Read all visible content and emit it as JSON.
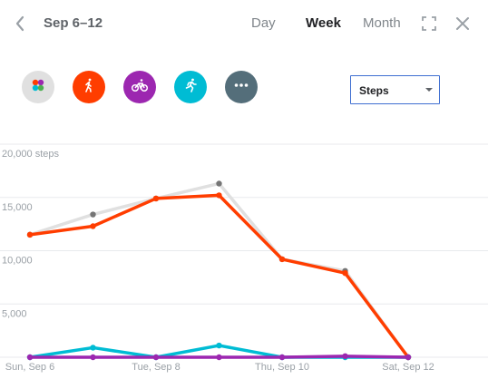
{
  "header": {
    "title": "Sep 6–12",
    "tabs": [
      {
        "label": "Day",
        "active": false
      },
      {
        "label": "Week",
        "active": true
      },
      {
        "label": "Month",
        "active": false
      }
    ],
    "icons": [
      "back-chevron-icon",
      "fullscreen-icon",
      "close-icon"
    ]
  },
  "filters": [
    {
      "name": "all-activities",
      "icon": "multicolor-dots-icon",
      "color": "#e0e0e0"
    },
    {
      "name": "walking",
      "icon": "walking-icon",
      "color": "#ff3d00"
    },
    {
      "name": "biking",
      "icon": "bicycle-icon",
      "color": "#9c27b0"
    },
    {
      "name": "running",
      "icon": "running-icon",
      "color": "#00bcd4"
    },
    {
      "name": "more",
      "icon": "more-dots-icon",
      "color": "#546e7a"
    }
  ],
  "metric_select": {
    "value": "Steps"
  },
  "chart_data": {
    "type": "line",
    "ylabel_unit": "steps",
    "y_ticks": [
      "20,000 steps",
      "15,000",
      "10,000",
      "5,000"
    ],
    "x_labels": [
      "Sun, Sep 6",
      "Tue, Sep 8",
      "Thu, Sep 10",
      "Sat, Sep 12"
    ],
    "x": [
      "Sep 6",
      "Sep 7",
      "Sep 8",
      "Sep 9",
      "Sep 10",
      "Sep 11",
      "Sep 12"
    ],
    "ylim": [
      0,
      20000
    ],
    "grid": true,
    "series": [
      {
        "color": "#e0e0e0",
        "marker_color": "#757575",
        "values": [
          11500,
          13400,
          14900,
          16300,
          9200,
          8100,
          0
        ]
      },
      {
        "color": "#ff3d00",
        "marker_color": "#ff3d00",
        "values": [
          11500,
          12300,
          14900,
          15200,
          9200,
          7900,
          0
        ]
      },
      {
        "color": "#00bcd4",
        "marker_color": "#00bcd4",
        "values": [
          0,
          900,
          0,
          1100,
          0,
          0,
          0
        ]
      },
      {
        "color": "#9c27b0",
        "marker_color": "#9c27b0",
        "values": [
          0,
          0,
          0,
          0,
          0,
          100,
          0
        ]
      }
    ]
  }
}
